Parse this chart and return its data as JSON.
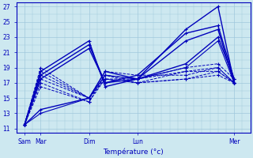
{
  "xlabel": "Température (°c)",
  "background_color": "#cde8f0",
  "line_color": "#0000bb",
  "ylim": [
    10.5,
    27.5
  ],
  "yticks": [
    11,
    13,
    15,
    17,
    19,
    21,
    23,
    25,
    27
  ],
  "xtick_labels": [
    "Sam",
    "Mar",
    "Dim",
    "Lun",
    "Mer"
  ],
  "xtick_positions": [
    0,
    1,
    4,
    7,
    13
  ],
  "grid_color": "#a0c8dc",
  "xlim": [
    -0.5,
    14.0
  ],
  "series": [
    {
      "x": [
        0,
        1,
        4,
        5,
        7,
        10,
        12,
        13
      ],
      "y": [
        11.5,
        18.5,
        22.5,
        16.5,
        17.5,
        24.0,
        27.0,
        17.0
      ],
      "ls": "-",
      "lw": 1.0
    },
    {
      "x": [
        0,
        1,
        4,
        5,
        7,
        10,
        12,
        13
      ],
      "y": [
        11.5,
        18.0,
        22.0,
        17.0,
        18.0,
        23.5,
        24.5,
        17.5
      ],
      "ls": "-",
      "lw": 1.0
    },
    {
      "x": [
        0,
        1,
        4,
        5,
        7,
        10,
        12,
        13
      ],
      "y": [
        11.5,
        17.5,
        21.5,
        17.0,
        17.5,
        22.5,
        24.0,
        17.0
      ],
      "ls": "-",
      "lw": 1.0
    },
    {
      "x": [
        0,
        1,
        4,
        5,
        7,
        10,
        12,
        13
      ],
      "y": [
        11.5,
        13.5,
        15.0,
        18.5,
        17.5,
        19.5,
        23.0,
        17.5
      ],
      "ls": "-",
      "lw": 1.0
    },
    {
      "x": [
        0,
        1,
        4,
        5,
        7,
        10,
        12,
        13
      ],
      "y": [
        11.5,
        13.0,
        15.0,
        18.0,
        17.5,
        19.0,
        22.5,
        17.0
      ],
      "ls": "-",
      "lw": 0.8
    },
    {
      "x": [
        0,
        1,
        4,
        5,
        7,
        10,
        12,
        13
      ],
      "y": [
        11.5,
        19.0,
        15.0,
        17.5,
        17.5,
        19.0,
        19.5,
        17.5
      ],
      "ls": "--",
      "lw": 0.7
    },
    {
      "x": [
        0,
        1,
        4,
        5,
        7,
        10,
        12,
        13
      ],
      "y": [
        11.5,
        18.5,
        15.0,
        18.0,
        17.5,
        18.5,
        19.0,
        17.0
      ],
      "ls": "--",
      "lw": 0.7
    },
    {
      "x": [
        0,
        1,
        4,
        5,
        7,
        10,
        12,
        13
      ],
      "y": [
        11.5,
        18.0,
        15.0,
        18.5,
        18.0,
        18.0,
        19.0,
        17.0
      ],
      "ls": "--",
      "lw": 0.7
    },
    {
      "x": [
        0,
        1,
        4,
        5,
        7,
        10,
        12,
        13
      ],
      "y": [
        11.5,
        17.5,
        15.0,
        17.5,
        17.0,
        18.5,
        18.5,
        17.0
      ],
      "ls": "--",
      "lw": 0.7
    },
    {
      "x": [
        0,
        1,
        4,
        5,
        7,
        10,
        12,
        13
      ],
      "y": [
        11.5,
        17.0,
        14.5,
        18.0,
        17.0,
        17.5,
        18.5,
        17.0
      ],
      "ls": "--",
      "lw": 0.7
    },
    {
      "x": [
        0,
        1,
        4,
        5,
        7,
        10,
        12,
        13
      ],
      "y": [
        11.5,
        16.5,
        14.5,
        17.5,
        17.0,
        17.5,
        18.0,
        17.0
      ],
      "ls": "--",
      "lw": 0.7
    }
  ]
}
